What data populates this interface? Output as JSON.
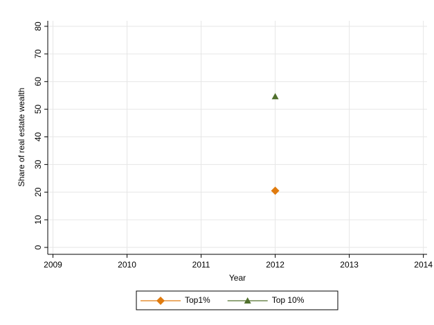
{
  "chart_data": {
    "type": "scatter",
    "x_label": "Year",
    "y_label": "Share of real estate wealth",
    "xlim": [
      2008.93,
      2014.05
    ],
    "xticks": [
      2009,
      2010,
      2011,
      2012,
      2013,
      2014
    ],
    "ylim": [
      -2.5,
      82
    ],
    "yticks": [
      0,
      10,
      20,
      30,
      40,
      50,
      60,
      70,
      80
    ],
    "grid": true,
    "legend": "bottom",
    "series": [
      {
        "name": "Top1%",
        "color": "#e07b0e",
        "marker": "diamond",
        "x": [
          2012
        ],
        "values": [
          20.5
        ]
      },
      {
        "name": "Top 10%",
        "color": "#50702d",
        "marker": "triangle",
        "x": [
          2012
        ],
        "values": [
          54.6
        ]
      }
    ]
  }
}
